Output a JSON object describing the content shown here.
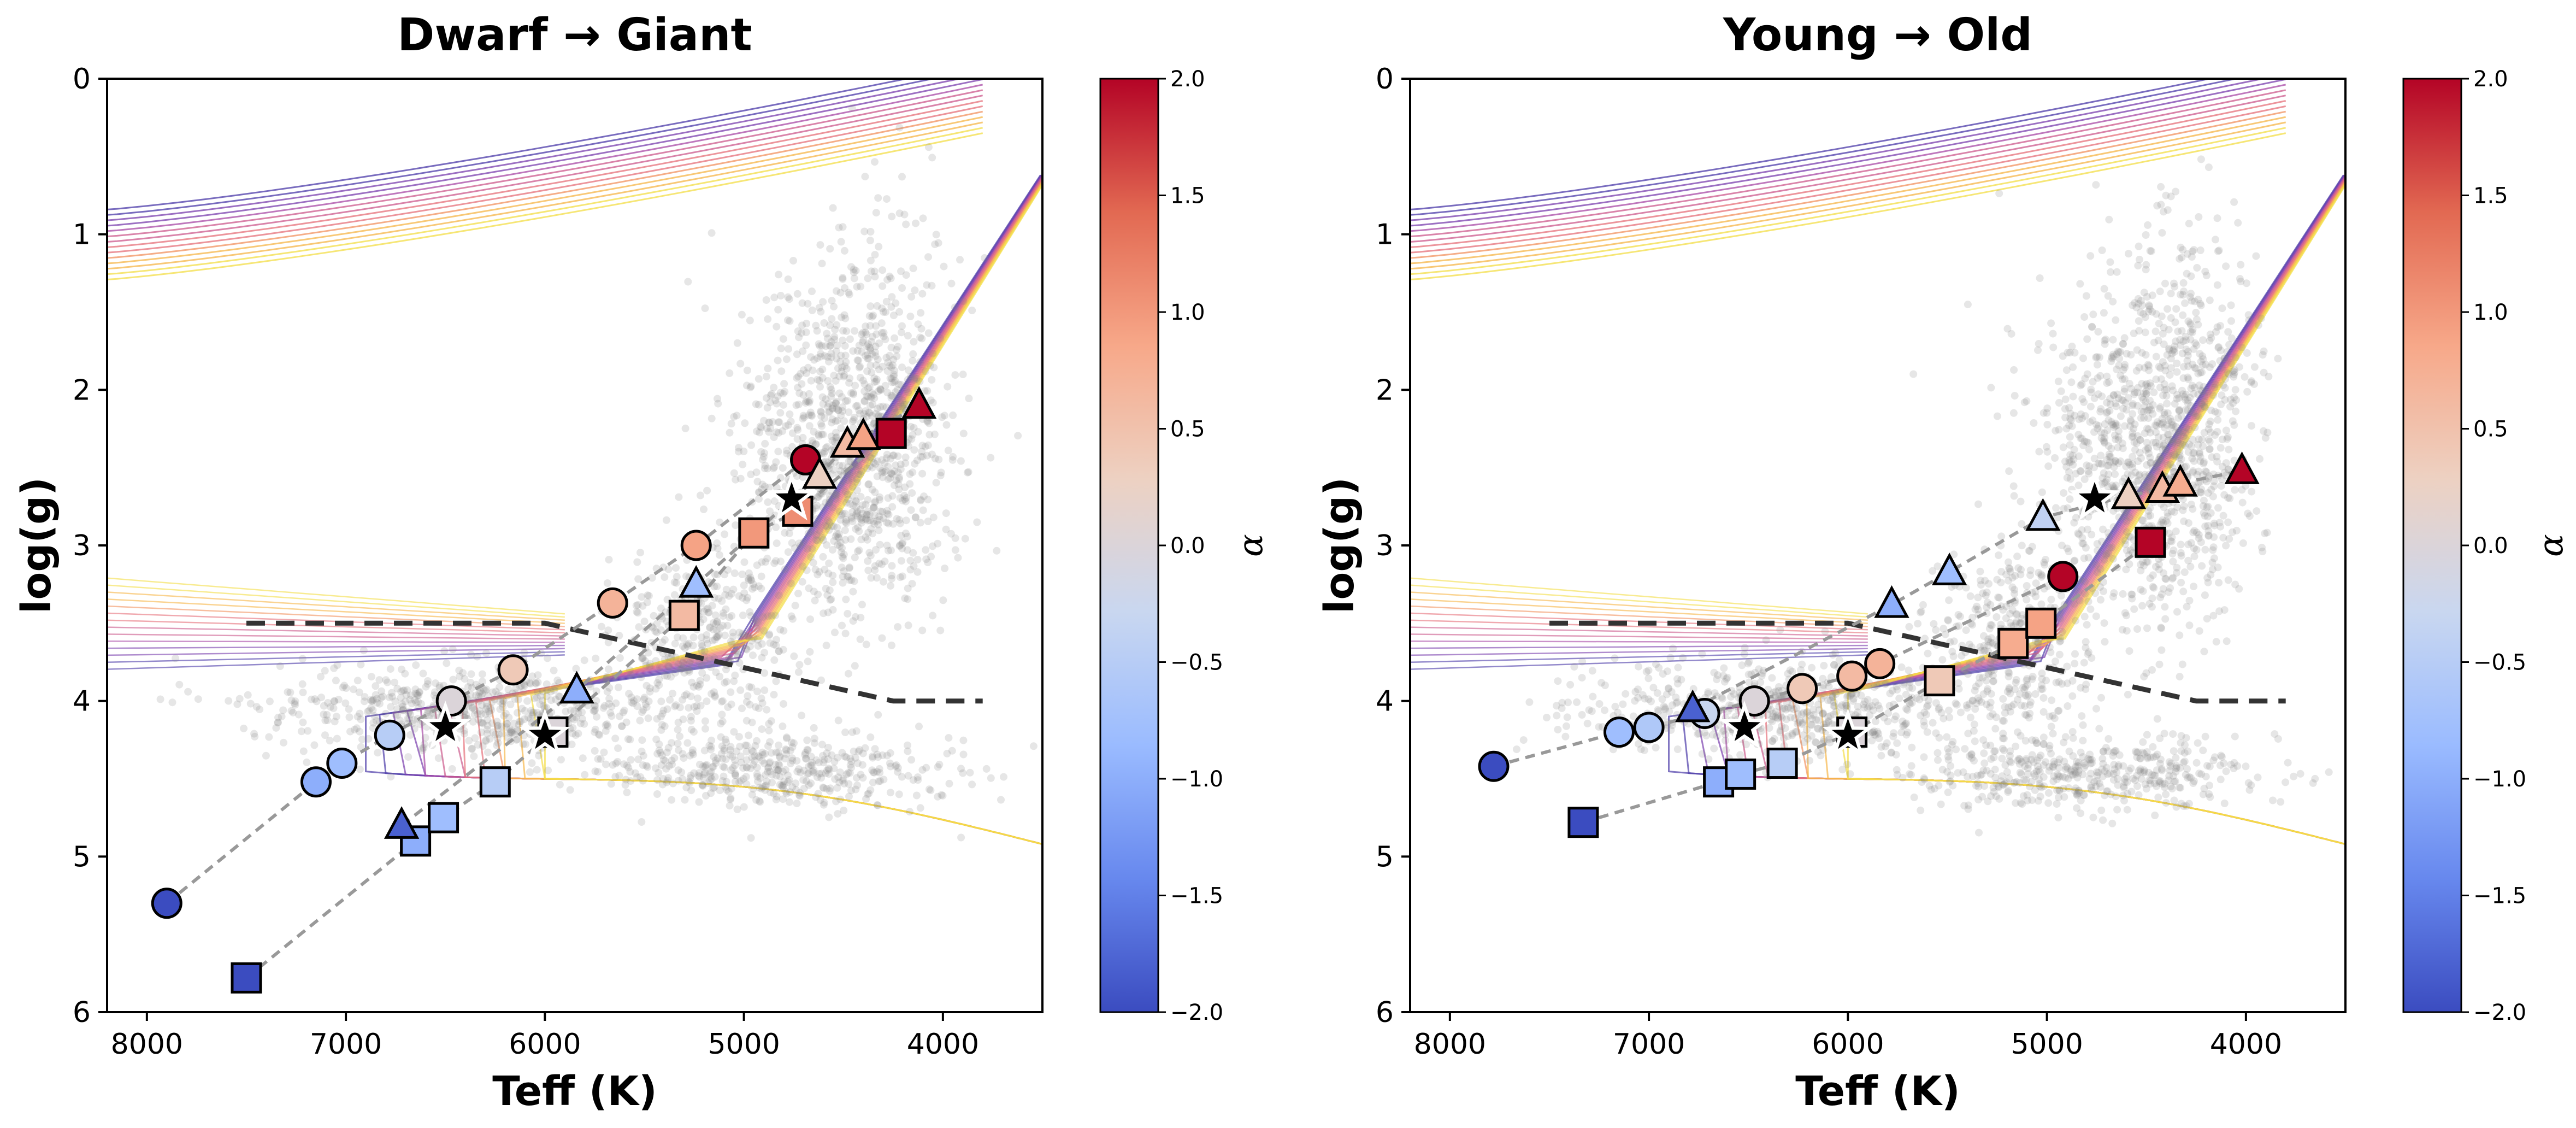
{
  "colors": {
    "cmap": [
      "#3b4cc0",
      "#6788ee",
      "#9abbff",
      "#c9d7f0",
      "#edd1c2",
      "#f7a889",
      "#e26952",
      "#b40426"
    ],
    "scatter": "#808080",
    "boundary": "#333333",
    "track": "#999999",
    "star_fill": "#000000",
    "isochrone_palette": [
      "#4b3aa8",
      "#7a3fae",
      "#a84aa6",
      "#cc5a8c",
      "#e6707a",
      "#f2925f",
      "#f6b648",
      "#f3dd47"
    ]
  },
  "chart_data": [
    {
      "type": "scatter",
      "title": "Dwarf → Giant",
      "xlabel": "Teff (K)",
      "ylabel": "log(g)",
      "xlim": [
        8200,
        3500
      ],
      "ylim": [
        6,
        0
      ],
      "xticks": [
        8000,
        7000,
        6000,
        5000,
        4000
      ],
      "yticks": [
        0,
        1,
        2,
        3,
        4,
        5,
        6
      ],
      "colorbar": {
        "label": "α",
        "range": [
          -2.0,
          2.0
        ],
        "ticks": [
          "2.0",
          "1.5",
          "1.0",
          "0.5",
          "0.0",
          "−0.5",
          "−1.0",
          "−1.5",
          "−2.0"
        ]
      },
      "boundary_line": [
        [
          7500,
          3.5
        ],
        [
          6000,
          3.5
        ],
        [
          4250,
          4.0
        ],
        [
          3800,
          4.0
        ]
      ],
      "reference_stars": [
        [
          6500,
          4.17
        ],
        [
          6000,
          4.22
        ],
        [
          4760,
          2.7
        ]
      ],
      "series": [
        {
          "name": "circle track",
          "marker": "circle",
          "points": [
            {
              "teff": 7900,
              "logg": 5.3,
              "alpha": -2.0
            },
            {
              "teff": 7150,
              "logg": 4.52,
              "alpha": -1.0
            },
            {
              "teff": 7020,
              "logg": 4.4,
              "alpha": -0.8
            },
            {
              "teff": 6780,
              "logg": 4.22,
              "alpha": -0.5
            },
            {
              "teff": 6470,
              "logg": 4.0,
              "alpha": 0.0
            },
            {
              "teff": 6160,
              "logg": 3.8,
              "alpha": 0.4
            },
            {
              "teff": 5660,
              "logg": 3.37,
              "alpha": 0.7
            },
            {
              "teff": 5240,
              "logg": 3.0,
              "alpha": 0.9
            },
            {
              "teff": 4690,
              "logg": 2.45,
              "alpha": 2.0
            }
          ]
        },
        {
          "name": "square track",
          "marker": "square",
          "points": [
            {
              "teff": 7500,
              "logg": 5.78,
              "alpha": -2.0
            },
            {
              "teff": 6650,
              "logg": 4.9,
              "alpha": -1.0
            },
            {
              "teff": 6510,
              "logg": 4.75,
              "alpha": -0.8
            },
            {
              "teff": 6250,
              "logg": 4.52,
              "alpha": -0.5
            },
            {
              "teff": 5960,
              "logg": 4.2,
              "alpha": 0.0
            },
            {
              "teff": 5300,
              "logg": 3.45,
              "alpha": 0.6
            },
            {
              "teff": 4950,
              "logg": 2.92,
              "alpha": 1.0
            },
            {
              "teff": 4730,
              "logg": 2.78,
              "alpha": 1.1
            },
            {
              "teff": 4260,
              "logg": 2.28,
              "alpha": 2.0
            }
          ]
        },
        {
          "name": "triangle track",
          "marker": "triangle",
          "points": [
            {
              "teff": 6720,
              "logg": 4.8,
              "alpha": -1.8
            },
            {
              "teff": 5840,
              "logg": 3.93,
              "alpha": -1.0
            },
            {
              "teff": 5240,
              "logg": 3.25,
              "alpha": -0.8
            },
            {
              "teff": 4620,
              "logg": 2.55,
              "alpha": 0.3
            },
            {
              "teff": 4480,
              "logg": 2.35,
              "alpha": 0.6
            },
            {
              "teff": 4400,
              "logg": 2.3,
              "alpha": 0.9
            },
            {
              "teff": 4120,
              "logg": 2.1,
              "alpha": 2.0
            }
          ]
        }
      ]
    },
    {
      "type": "scatter",
      "title": "Young → Old",
      "xlabel": "Teff (K)",
      "ylabel": "log(g)",
      "xlim": [
        8200,
        3500
      ],
      "ylim": [
        6,
        0
      ],
      "xticks": [
        8000,
        7000,
        6000,
        5000,
        4000
      ],
      "yticks": [
        0,
        1,
        2,
        3,
        4,
        5,
        6
      ],
      "colorbar": {
        "label": "α",
        "range": [
          -2.0,
          2.0
        ],
        "ticks": [
          "2.0",
          "1.5",
          "1.0",
          "0.5",
          "0.0",
          "−0.5",
          "−1.0",
          "−1.5",
          "−2.0"
        ]
      },
      "boundary_line": [
        [
          7500,
          3.5
        ],
        [
          6000,
          3.5
        ],
        [
          4250,
          4.0
        ],
        [
          3800,
          4.0
        ]
      ],
      "reference_stars": [
        [
          6520,
          4.17
        ],
        [
          6000,
          4.22
        ],
        [
          4760,
          2.7
        ]
      ],
      "series": [
        {
          "name": "circle track",
          "marker": "circle",
          "points": [
            {
              "teff": 7780,
              "logg": 4.42,
              "alpha": -2.0
            },
            {
              "teff": 7150,
              "logg": 4.2,
              "alpha": -0.8
            },
            {
              "teff": 7000,
              "logg": 4.17,
              "alpha": -0.6
            },
            {
              "teff": 6720,
              "logg": 4.08,
              "alpha": -0.3
            },
            {
              "teff": 6470,
              "logg": 4.0,
              "alpha": 0.0
            },
            {
              "teff": 6230,
              "logg": 3.92,
              "alpha": 0.4
            },
            {
              "teff": 5980,
              "logg": 3.84,
              "alpha": 0.6
            },
            {
              "teff": 5840,
              "logg": 3.76,
              "alpha": 0.7
            },
            {
              "teff": 4920,
              "logg": 3.2,
              "alpha": 2.0
            }
          ]
        },
        {
          "name": "square track",
          "marker": "square",
          "points": [
            {
              "teff": 7330,
              "logg": 4.78,
              "alpha": -2.0
            },
            {
              "teff": 6650,
              "logg": 4.52,
              "alpha": -1.0
            },
            {
              "teff": 6540,
              "logg": 4.47,
              "alpha": -0.8
            },
            {
              "teff": 6330,
              "logg": 4.4,
              "alpha": -0.5
            },
            {
              "teff": 5980,
              "logg": 4.2,
              "alpha": 0.0
            },
            {
              "teff": 5540,
              "logg": 3.87,
              "alpha": 0.4
            },
            {
              "teff": 5170,
              "logg": 3.63,
              "alpha": 0.8
            },
            {
              "teff": 5030,
              "logg": 3.5,
              "alpha": 0.9
            },
            {
              "teff": 4480,
              "logg": 2.98,
              "alpha": 2.0
            }
          ]
        },
        {
          "name": "triangle track",
          "marker": "triangle",
          "points": [
            {
              "teff": 6780,
              "logg": 4.05,
              "alpha": -1.8
            },
            {
              "teff": 5780,
              "logg": 3.38,
              "alpha": -1.0
            },
            {
              "teff": 5490,
              "logg": 3.17,
              "alpha": -0.8
            },
            {
              "teff": 5020,
              "logg": 2.82,
              "alpha": -0.4
            },
            {
              "teff": 4590,
              "logg": 2.68,
              "alpha": 0.3
            },
            {
              "teff": 4420,
              "logg": 2.64,
              "alpha": 0.6
            },
            {
              "teff": 4330,
              "logg": 2.6,
              "alpha": 0.8
            },
            {
              "teff": 4020,
              "logg": 2.52,
              "alpha": 2.0
            }
          ]
        }
      ]
    }
  ]
}
